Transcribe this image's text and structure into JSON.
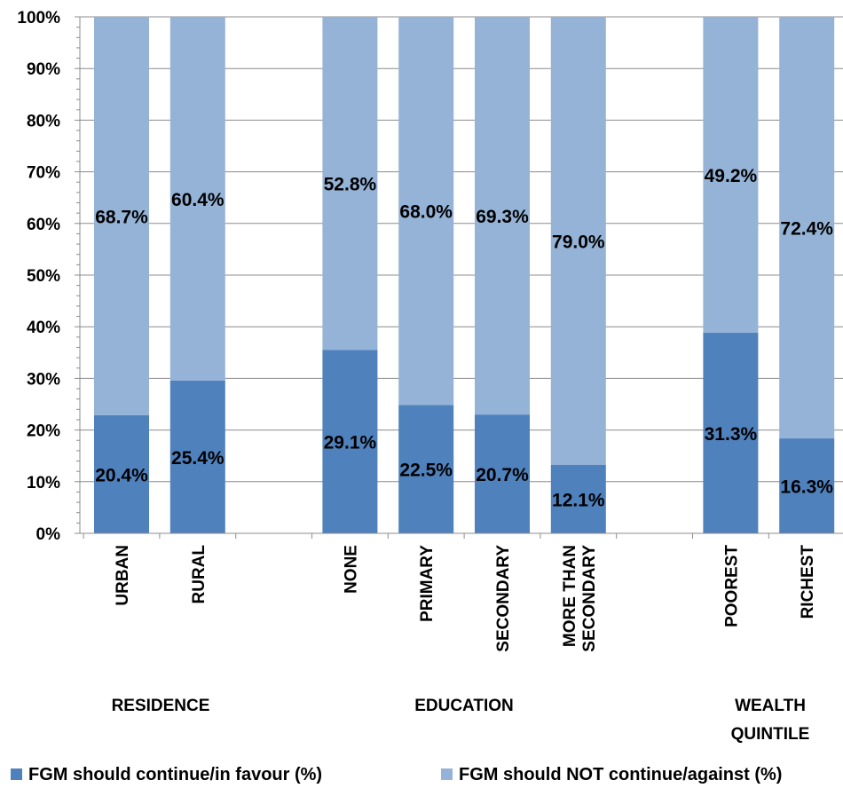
{
  "chart_data": {
    "type": "bar",
    "stacked": true,
    "percent_stacked": true,
    "categories": [
      "URBAN",
      "RURAL",
      "NONE",
      "PRIMARY",
      "SECONDARY",
      "MORE THAN SECONDARY",
      "POOREST",
      "RICHEST"
    ],
    "groups": [
      {
        "label": [
          "RESIDENCE"
        ],
        "categories": [
          "URBAN",
          "RURAL"
        ]
      },
      {
        "label": [
          "EDUCATION"
        ],
        "categories": [
          "NONE",
          "PRIMARY",
          "SECONDARY",
          "MORE THAN SECONDARY"
        ]
      },
      {
        "label": [
          "WEALTH",
          "QUINTILE"
        ],
        "categories": [
          "POOREST",
          "RICHEST"
        ]
      }
    ],
    "category_label_lines": [
      [
        "URBAN"
      ],
      [
        "RURAL"
      ],
      [
        "NONE"
      ],
      [
        "PRIMARY"
      ],
      [
        "SECONDARY"
      ],
      [
        "MORE THAN",
        "SECONDARY"
      ],
      [
        "POOREST"
      ],
      [
        "RICHEST"
      ]
    ],
    "series": [
      {
        "name": "FGM should continue/in favour (%)",
        "color": "#4f81bd",
        "values": [
          20.4,
          25.4,
          29.1,
          22.5,
          20.7,
          12.1,
          31.3,
          16.3
        ],
        "labels": [
          "20.4%",
          "25.4%",
          "29.1%",
          "22.5%",
          "20.7%",
          "12.1%",
          "31.3%",
          "16.3%"
        ]
      },
      {
        "name": "FGM should NOT continue/against (%)",
        "color": "#95b3d7",
        "values": [
          68.7,
          60.4,
          52.8,
          68.0,
          69.3,
          79.0,
          49.2,
          72.4
        ],
        "labels": [
          "68.7%",
          "60.4%",
          "52.8%",
          "68.0%",
          "69.3%",
          "79.0%",
          "49.2%",
          "72.4%"
        ]
      }
    ],
    "y_ticks": [
      "0%",
      "10%",
      "20%",
      "30%",
      "40%",
      "50%",
      "60%",
      "70%",
      "80%",
      "90%",
      "100%"
    ],
    "ylim": [
      0,
      100
    ],
    "legend_position": "bottom",
    "grid": true
  }
}
